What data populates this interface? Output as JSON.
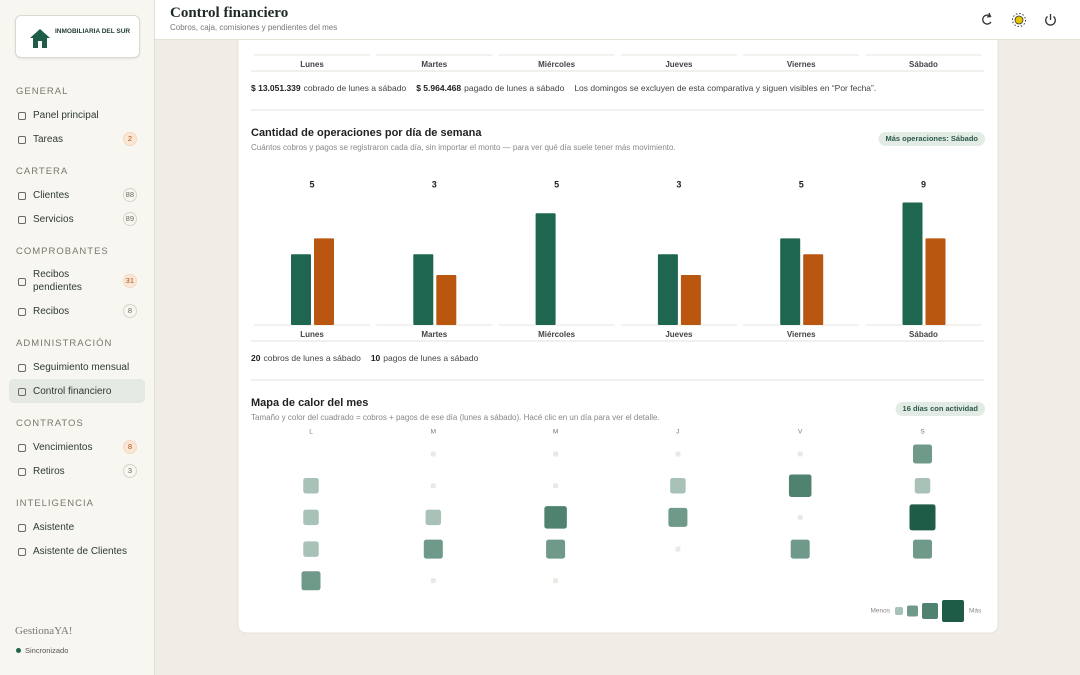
{
  "sidebar": {
    "brand": "INMOBILIARIA DEL SUR",
    "sections": [
      {
        "title": "GENERAL",
        "items": [
          {
            "label": "Panel principal"
          },
          {
            "label": "Tareas",
            "badge": 2,
            "badge_tone": "alert"
          }
        ]
      },
      {
        "title": "CARTERA",
        "items": [
          {
            "label": "Clientes",
            "badge": 88,
            "badge_tone": "neutral"
          },
          {
            "label": "Servicios",
            "badge": 89,
            "badge_tone": "neutral"
          }
        ]
      },
      {
        "title": "COMPROBANTES",
        "items": [
          {
            "label": "Recibos pendientes",
            "badge": 31,
            "badge_tone": "alert"
          },
          {
            "label": "Recibos",
            "badge": 8,
            "badge_tone": "neutral"
          }
        ]
      },
      {
        "title": "ADMINISTRACIÓN",
        "items": [
          {
            "label": "Seguimiento mensual"
          },
          {
            "label": "Control financiero",
            "active": true
          }
        ]
      },
      {
        "title": "CONTRATOS",
        "items": [
          {
            "label": "Vencimientos",
            "badge": 8,
            "badge_tone": "alert"
          },
          {
            "label": "Retiros",
            "badge": 3,
            "badge_tone": "neutral"
          }
        ]
      },
      {
        "title": "INTELIGENCIA",
        "items": [
          {
            "label": "Asistente"
          },
          {
            "label": "Asistente de Clientes"
          }
        ]
      }
    ],
    "footer": {
      "app": "GestionaYA!",
      "status": "Sincronizado"
    }
  },
  "header": {
    "title": "Control financiero",
    "subtitle": "Cobros, caja, comisiones y pendientes del mes"
  },
  "amounts": {
    "type": "bar",
    "categories": [
      "Lunes",
      "Martes",
      "Miércoles",
      "Jueves",
      "Viernes",
      "Sábado"
    ],
    "summary": [
      {
        "value": "$ 13.051.339",
        "text": "cobrado de lunes a sábado"
      },
      {
        "value": "$ 5.964.468",
        "text": "pagado de lunes a sábado"
      }
    ],
    "note": "Los domingos se excluyen de esta comparativa y siguen visibles en “Por fecha”."
  },
  "operations": {
    "type": "bar",
    "scale": "sqrt",
    "title": "Cantidad de operaciones por día de semana",
    "subtitle": "Cuántos cobros y pagos se registraron cada día, sin importar el monto — para ver qué día suele tener más movimiento.",
    "badge": "Más operaciones: Sábado",
    "categories": [
      "Lunes",
      "Martes",
      "Miércoles",
      "Jueves",
      "Viernes",
      "Sábado"
    ],
    "totals": [
      5,
      3,
      5,
      3,
      5,
      9
    ],
    "series": [
      {
        "color": "#1f6650",
        "values": [
          2,
          2,
          5,
          2,
          3,
          6
        ]
      },
      {
        "color": "#b9560f",
        "values": [
          3,
          1,
          0,
          1,
          2,
          3
        ]
      }
    ],
    "summary": [
      {
        "value": 20,
        "text": "cobros de lunes a sábado"
      },
      {
        "value": 10,
        "text": "pagos de lunes a sábado"
      }
    ]
  },
  "heatmap": {
    "type": "heatmap",
    "title": "Mapa de calor del mes",
    "subtitle": "Tamaño y color del cuadrado = cobros + pagos de ese día (lunes a sábado). Hacé clic en un día para ver el detalle.",
    "badge": "16 días con actividad",
    "columns": [
      "L",
      "M",
      "M",
      "J",
      "V",
      "S"
    ],
    "rows": [
      [
        null,
        0,
        0,
        0,
        0,
        2
      ],
      [
        1,
        0,
        0,
        1,
        3,
        1
      ],
      [
        1,
        1,
        3,
        2,
        0,
        4
      ],
      [
        1,
        2,
        2,
        0,
        2,
        2
      ],
      [
        2,
        0,
        0,
        null,
        null,
        null
      ]
    ],
    "colors": [
      "#a9c2b8",
      "#6f9a89",
      "#4f8370",
      "#1f5c48"
    ],
    "legend": [
      "Menos",
      "Más"
    ]
  }
}
